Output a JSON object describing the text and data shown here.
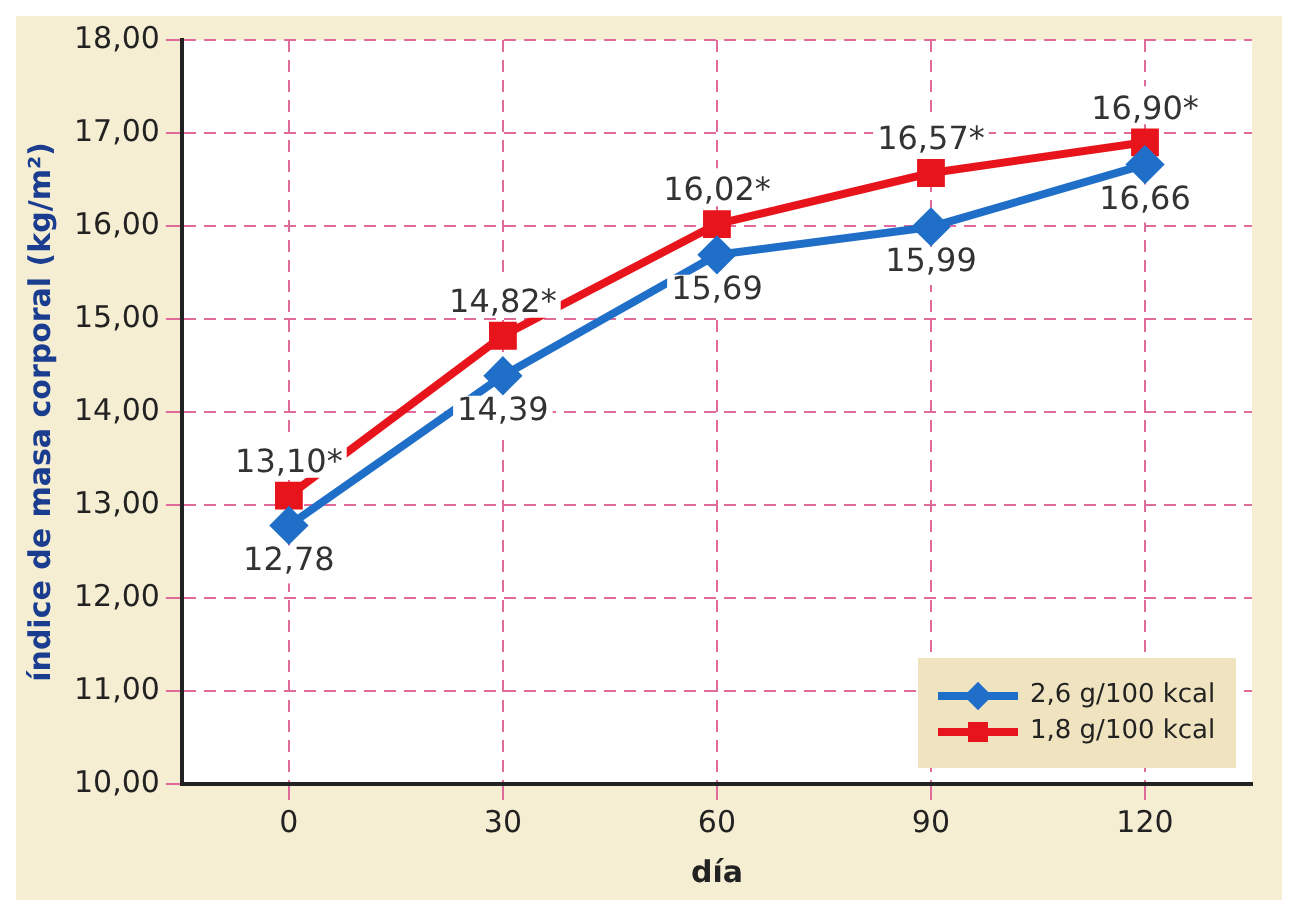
{
  "chart_data": {
    "type": "line",
    "xlabel": "día",
    "ylabel": "índice de masa corporal (kg/m²)",
    "categories": [
      "0",
      "30",
      "60",
      "90",
      "120"
    ],
    "series": [
      {
        "name": "2,6 g/100 kcal",
        "color": "#1f6fc8",
        "marker": "diamond",
        "values": [
          12.78,
          14.39,
          15.69,
          15.99,
          16.66
        ],
        "value_labels": [
          "12,78",
          "14,39",
          "15,69",
          "15,99",
          "16,66"
        ]
      },
      {
        "name": "1,8 g/100 kcal",
        "color": "#e8141c",
        "marker": "square",
        "values": [
          13.1,
          14.82,
          16.02,
          16.57,
          16.9
        ],
        "value_labels": [
          "13,10*",
          "14,82*",
          "16,02*",
          "16,57*",
          "16,90*"
        ]
      }
    ],
    "ylim": [
      10,
      18
    ],
    "yticks": [
      {
        "value": 10,
        "label": "10,00"
      },
      {
        "value": 11,
        "label": "11,00"
      },
      {
        "value": 12,
        "label": "12,00"
      },
      {
        "value": 13,
        "label": "13,00"
      },
      {
        "value": 14,
        "label": "14,00"
      },
      {
        "value": 15,
        "label": "15,00"
      },
      {
        "value": 16,
        "label": "16,00"
      },
      {
        "value": 17,
        "label": "17,00"
      },
      {
        "value": 18,
        "label": "18,00"
      }
    ],
    "grid": true,
    "line_style": "solid",
    "legend": "bottom right"
  }
}
